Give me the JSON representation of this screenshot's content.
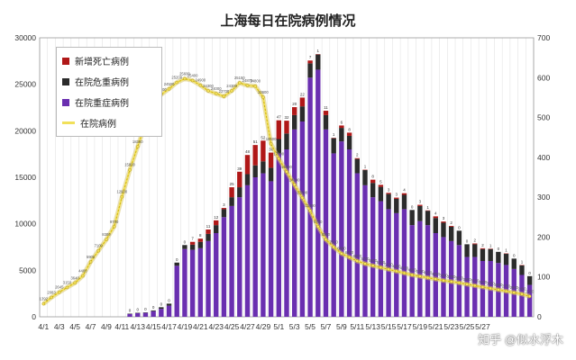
{
  "title": "上海每日在院病例情况",
  "watermark": "知乎 @似水浮木",
  "legend": {
    "items": [
      {
        "label": "新增死亡病例",
        "color": "#b01818",
        "kind": "bar"
      },
      {
        "label": "在院危重病例",
        "color": "#2b2b2b",
        "kind": "bar"
      },
      {
        "label": "在院重症病例",
        "color": "#6a2fb0",
        "kind": "bar"
      },
      {
        "label": "在院病例",
        "color": "#f1e05a",
        "kind": "line"
      }
    ]
  },
  "chart_data": {
    "type": "bar",
    "title": "上海每日在院病例情况",
    "x_tick_labels": [
      "4/1",
      "4/3",
      "4/5",
      "4/7",
      "4/9",
      "4/11",
      "4/13",
      "4/15",
      "4/17",
      "4/19",
      "4/21",
      "4/23",
      "4/25",
      "4/27",
      "4/29",
      "5/1",
      "5/3",
      "5/5",
      "5/7",
      "5/9",
      "5/11",
      "5/13",
      "5/15",
      "5/17",
      "5/19",
      "5/21",
      "5/23",
      "5/25",
      "5/27"
    ],
    "x_tick_display": [
      "4/1",
      "4/3",
      "4/5",
      "4/7",
      "4/9",
      "4/11",
      "4/13",
      "4/15",
      "4/17",
      "4/19",
      "4/21",
      "4/23",
      "4/25",
      "4/27",
      "4/29",
      "5/1",
      "5/3",
      "5/5",
      "5/7",
      "5/9",
      "5/11",
      "5/13",
      "5/15",
      "5/17",
      "5/19",
      "5/21",
      "5/23",
      "5/25",
      "5/27"
    ],
    "y_left": {
      "min": 0,
      "max": 30000,
      "ticks": [
        0,
        5000,
        10000,
        15000,
        20000,
        25000,
        30000
      ]
    },
    "y_right": {
      "min": 0,
      "max": 700,
      "ticks": [
        0,
        100,
        200,
        300,
        400,
        500,
        600,
        700
      ]
    },
    "grid": "vertical",
    "legend_position": "top-left",
    "series": [
      {
        "name": "新增死亡病例",
        "axis": "right",
        "color": "#b01818",
        "values": [
          0,
          0,
          0,
          0,
          0,
          0,
          0,
          0,
          0,
          0,
          0,
          0,
          0,
          0,
          0,
          0,
          0,
          0,
          0,
          7,
          8,
          11,
          12,
          3,
          25,
          39,
          48,
          51,
          52,
          38,
          47,
          32,
          20,
          22,
          7,
          1,
          11,
          1,
          6,
          8,
          2,
          1,
          8,
          5,
          3,
          3,
          4,
          0,
          3,
          1,
          4,
          3,
          2,
          0,
          0,
          2,
          2,
          1,
          0,
          1,
          0,
          1,
          0
        ]
      },
      {
        "name": "在院危重病例",
        "axis": "right",
        "color": "#2b2b2b",
        "values": [
          0,
          0,
          0,
          0,
          0,
          0,
          0,
          0,
          0,
          0,
          0,
          1,
          1,
          1,
          2,
          4,
          5,
          8,
          10,
          13,
          16,
          18,
          20,
          20,
          22,
          25,
          28,
          30,
          30,
          34,
          36,
          40,
          36,
          38,
          36,
          38,
          36,
          38,
          34,
          34,
          36,
          38,
          36,
          36,
          38,
          36,
          36,
          38,
          38,
          36,
          38,
          36,
          36,
          36,
          32,
          32,
          30,
          30,
          28,
          28,
          26,
          24,
          22
        ]
      },
      {
        "name": "在院重症病例",
        "axis": "right",
        "color": "#6a2fb0",
        "values": [
          0,
          0,
          0,
          0,
          0,
          0,
          0,
          0,
          0,
          0,
          0,
          7,
          9,
          10,
          14,
          20,
          28,
          128,
          170,
          168,
          172,
          190,
          210,
          250,
          278,
          300,
          330,
          350,
          360,
          340,
          410,
          420,
          470,
          490,
          600,
          620,
          470,
          410,
          440,
          420,
          360,
          330,
          300,
          290,
          270,
          260,
          270,
          230,
          240,
          230,
          210,
          200,
          190,
          180,
          150,
          150,
          140,
          140,
          135,
          130,
          120,
          105,
          80
        ]
      },
      {
        "name": "在院病例",
        "axis": "left",
        "color": "#f1e05a",
        "type": "line",
        "values": [
          1392,
          2083,
          2645,
          3150,
          3640,
          4400,
          5900,
          7100,
          8300,
          9700,
          12900,
          15800,
          18300,
          20800,
          22500,
          23900,
          24500,
          25200,
          25600,
          25400,
          24900,
          24300,
          24000,
          23700,
          24300,
          25150,
          24870,
          24800,
          23600,
          18600,
          17000,
          15600,
          14200,
          12800,
          11400,
          9700,
          8300,
          7500,
          6800,
          6400,
          6000,
          5700,
          5500,
          5300,
          5100,
          4900,
          4700,
          4500,
          4350,
          4200,
          4050,
          3900,
          3780,
          3650,
          3500,
          3350,
          3200,
          3050,
          2900,
          2750,
          2600,
          2450,
          2200
        ]
      }
    ],
    "data_labels": {
      "在院病例": [
        "1392",
        "2083",
        "2645",
        "3150",
        "3640",
        "4400",
        "5900",
        "7100",
        "8300",
        "9700",
        "12900",
        "15800",
        "18300",
        "20800",
        "22500",
        "23900",
        "24500",
        "25200",
        "25600",
        "25400",
        "24900",
        "24300",
        "24000",
        "23700",
        "24300",
        "25150",
        "24870",
        "24800",
        "23600",
        "18600",
        "17000",
        "15600",
        "14200",
        "12800",
        "11400",
        "9700",
        "8300",
        "7500",
        "6800",
        "6400",
        "6000",
        "5700",
        "5500",
        "5300",
        "5100",
        "4900",
        "4700",
        "4500",
        "4350",
        "4200",
        "4050",
        "3900",
        "3780",
        "3650",
        "3500",
        "3350",
        "3200",
        "3050",
        "2900",
        "2750",
        "2600",
        "2450",
        "2200"
      ]
    }
  }
}
